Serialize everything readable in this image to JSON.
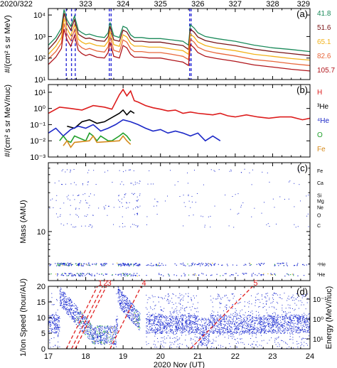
{
  "chart_data": [
    {
      "panel_label": "(a)",
      "type": "line",
      "ylabel": "#/(cm² s sr MeV)",
      "yscale": "log",
      "ylim": [
        10,
        20000
      ],
      "yticks": [
        "10¹",
        "10²",
        "10³",
        "10⁴"
      ],
      "xlim": [
        17,
        24
      ],
      "top_axis": {
        "labels": [
          "2020/322",
          "323",
          "324",
          "325",
          "326",
          "327",
          "328",
          "329"
        ],
        "positions": [
          17,
          18,
          19,
          20,
          21,
          22,
          23,
          24
        ]
      },
      "event_markers": [
        17.48,
        17.62,
        17.72,
        18.63,
        18.68,
        20.78,
        20.82
      ],
      "series": [
        {
          "name": "41.8",
          "color": "#1b8a5a",
          "x": [
            17,
            17.2,
            17.35,
            17.42,
            17.5,
            17.6,
            17.7,
            17.8,
            17.9,
            18.0,
            18.1,
            18.3,
            18.5,
            18.6,
            18.65,
            18.75,
            18.9,
            19.0,
            19.1,
            19.2,
            19.3,
            19.5,
            19.7,
            20.0,
            20.3,
            20.6,
            20.75,
            20.8,
            20.9,
            21.0,
            21.2,
            21.5,
            22.0,
            22.5,
            23.0,
            23.5,
            24.0
          ],
          "values": [
            400,
            900,
            2500,
            18000,
            6000,
            3000,
            9000,
            2000,
            1500,
            1200,
            1300,
            1000,
            900,
            1500,
            4500,
            1100,
            900,
            3000,
            2500,
            1200,
            900,
            900,
            800,
            800,
            700,
            600,
            400,
            3500,
            2500,
            1500,
            1000,
            800,
            600,
            400,
            300,
            250,
            200
          ]
        },
        {
          "name": "51.6",
          "color": "#7a1416",
          "x": [
            17,
            17.2,
            17.35,
            17.42,
            17.5,
            17.6,
            17.7,
            17.8,
            17.9,
            18.0,
            18.1,
            18.3,
            18.5,
            18.6,
            18.65,
            18.75,
            18.9,
            19.0,
            19.1,
            19.2,
            19.3,
            19.5,
            19.7,
            20.0,
            20.3,
            20.6,
            20.75,
            20.8,
            20.9,
            21.0,
            21.2,
            21.5,
            22.0,
            22.5,
            23.0,
            23.5,
            24.0
          ],
          "values": [
            250,
            600,
            1600,
            12000,
            4000,
            2000,
            6000,
            1300,
            1000,
            800,
            850,
            650,
            600,
            1000,
            3000,
            700,
            600,
            2000,
            1600,
            800,
            600,
            600,
            550,
            550,
            450,
            380,
            250,
            2200,
            1600,
            950,
            650,
            500,
            380,
            260,
            200,
            160,
            130
          ]
        },
        {
          "name": "65.1",
          "color": "#f2b21a",
          "x": [
            17,
            17.2,
            17.35,
            17.42,
            17.5,
            17.6,
            17.7,
            17.8,
            17.9,
            18.0,
            18.1,
            18.3,
            18.5,
            18.6,
            18.65,
            18.75,
            18.9,
            19.0,
            19.1,
            19.2,
            19.3,
            19.5,
            19.7,
            20.0,
            20.3,
            20.6,
            20.75,
            20.8,
            20.9,
            21.0,
            21.2,
            21.5,
            22.0,
            22.5,
            23.0,
            23.5,
            24.0
          ],
          "values": [
            150,
            350,
            900,
            7000,
            2300,
            1100,
            3500,
            750,
            550,
            450,
            500,
            380,
            350,
            600,
            1800,
            420,
            350,
            1200,
            950,
            480,
            360,
            360,
            320,
            320,
            260,
            220,
            150,
            1300,
            950,
            560,
            380,
            290,
            220,
            150,
            120,
            95,
            80
          ]
        },
        {
          "name": "82.6",
          "color": "#e8663a",
          "x": [
            17,
            17.2,
            17.35,
            17.42,
            17.5,
            17.6,
            17.7,
            17.8,
            17.9,
            18.0,
            18.1,
            18.3,
            18.5,
            18.6,
            18.65,
            18.75,
            18.9,
            19.0,
            19.1,
            19.2,
            19.3,
            19.5,
            19.7,
            20.0,
            20.3,
            20.6,
            20.75,
            20.8,
            20.9,
            21.0,
            21.2,
            21.5,
            22.0,
            22.5,
            23.0,
            23.5,
            24.0
          ],
          "values": [
            90,
            200,
            500,
            4000,
            1300,
            650,
            2000,
            420,
            300,
            250,
            280,
            210,
            190,
            330,
            1000,
            230,
            190,
            700,
            550,
            270,
            200,
            200,
            180,
            180,
            150,
            120,
            85,
            750,
            550,
            320,
            220,
            170,
            125,
            85,
            70,
            55,
            45
          ]
        },
        {
          "name": "105.7",
          "color": "#b0141a",
          "x": [
            17,
            17.2,
            17.35,
            17.42,
            17.5,
            17.6,
            17.7,
            17.8,
            17.9,
            18.0,
            18.1,
            18.3,
            18.5,
            18.6,
            18.65,
            18.75,
            18.9,
            19.0,
            19.1,
            19.2,
            19.3,
            19.5,
            19.7,
            20.0,
            20.3,
            20.6,
            20.75,
            20.8,
            20.9,
            21.0,
            21.2,
            21.5,
            22.0,
            22.5,
            23.0,
            23.5,
            24.0
          ],
          "values": [
            50,
            110,
            280,
            2200,
            700,
            350,
            1100,
            230,
            160,
            130,
            150,
            110,
            100,
            180,
            550,
            120,
            100,
            380,
            300,
            150,
            110,
            110,
            100,
            100,
            80,
            65,
            45,
            420,
            300,
            180,
            120,
            95,
            70,
            48,
            38,
            30,
            25
          ]
        }
      ]
    },
    {
      "panel_label": "(b)",
      "type": "line",
      "ylabel": "#/(cm² s sr MeV/nuc)",
      "yscale": "log",
      "ylim": [
        0.001,
        30
      ],
      "yticks": [
        "10⁻³",
        "10⁻²",
        "10⁻¹",
        "10⁰",
        "10¹"
      ],
      "xlim": [
        17,
        24
      ],
      "series": [
        {
          "name": "H",
          "color": "#dd1c1c",
          "x": [
            17,
            17.3,
            17.6,
            17.9,
            18.2,
            18.5,
            18.7,
            18.9,
            19.0,
            19.1,
            19.2,
            19.3,
            19.4,
            19.6,
            19.8,
            20.0,
            20.2,
            20.4,
            20.6,
            20.8,
            21.0,
            21.2,
            21.4,
            21.6,
            21.8,
            22.0,
            22.3,
            22.6,
            22.9,
            23.2,
            23.5,
            23.8,
            24.0
          ],
          "values": [
            0.5,
            1.2,
            1.0,
            0.8,
            1.5,
            1.2,
            0.9,
            7,
            15,
            6,
            12,
            3,
            2.5,
            1.5,
            1.1,
            0.9,
            0.7,
            0.8,
            0.5,
            0.6,
            0.5,
            0.45,
            0.4,
            0.5,
            0.35,
            0.3,
            0.4,
            0.3,
            0.25,
            0.3,
            0.3,
            0.2,
            0.25
          ]
        },
        {
          "name": "³He",
          "color": "#000000",
          "x": [
            17.5,
            17.7,
            17.9,
            18.1,
            18.3,
            18.5,
            18.9,
            19.0,
            19.1,
            19.2,
            19.3
          ],
          "values": [
            0.08,
            0.06,
            0.15,
            0.2,
            0.12,
            0.15,
            0.5,
            0.8,
            0.4,
            0.7,
            0.5
          ]
        },
        {
          "name": "⁴He",
          "color": "#1b27c7",
          "x": [
            17,
            17.2,
            17.4,
            17.6,
            17.8,
            18.0,
            18.2,
            18.4,
            18.6,
            18.8,
            19.0,
            19.2,
            19.4,
            19.6,
            19.8,
            20.0,
            20.2,
            20.4,
            20.6,
            20.8,
            21.0,
            21.2,
            21.4,
            21.6
          ],
          "values": [
            0.03,
            0.06,
            0.02,
            0.05,
            0.08,
            0.06,
            0.1,
            0.04,
            0.06,
            0.1,
            0.2,
            0.15,
            0.1,
            0.06,
            0.04,
            0.05,
            0.03,
            0.04,
            0.03,
            0.02,
            0.03,
            0.01,
            0.02,
            0.01
          ]
        },
        {
          "name": "O",
          "color": "#1f9f2a",
          "x": [
            17.3,
            17.4,
            17.5,
            17.6,
            17.7,
            18.0,
            18.1,
            18.2,
            18.3,
            18.4,
            18.6,
            18.7,
            18.9,
            19.0,
            19.1,
            19.2
          ],
          "values": [
            0.01,
            0.02,
            0.01,
            0.008,
            0.02,
            0.01,
            0.03,
            0.02,
            0.01,
            0.02,
            0.01,
            0.01,
            0.02,
            0.03,
            0.02,
            0.01
          ]
        },
        {
          "name": "Fe",
          "color": "#d68a1c",
          "x": [
            17.4,
            17.5,
            17.6,
            17.7,
            18.1,
            18.2,
            18.3,
            18.9,
            19.0,
            19.1,
            19.2
          ],
          "values": [
            0.005,
            0.01,
            0.004,
            0.008,
            0.01,
            0.02,
            0.008,
            0.01,
            0.02,
            0.01,
            0.006
          ]
        }
      ]
    },
    {
      "panel_label": "(c)",
      "type": "scatter",
      "ylabel": "Mass (AMU)",
      "yscale": "log",
      "ylim": [
        2.5,
        70
      ],
      "yticks": [
        "10"
      ],
      "xlim": [
        17,
        24
      ],
      "species_labels": [
        {
          "label": "Fe",
          "mass": 56
        },
        {
          "label": "Ca",
          "mass": 40
        },
        {
          "label": "Si",
          "mass": 28
        },
        {
          "label": "Mg",
          "mass": 24
        },
        {
          "label": "Ne",
          "mass": 20
        },
        {
          "label": "O",
          "mass": 16
        },
        {
          "label": "C",
          "mass": 12
        },
        {
          "label": "⁴He",
          "mass": 4
        },
        {
          "label": "³He",
          "mass": 3
        }
      ]
    },
    {
      "panel_label": "(d)",
      "type": "scatter",
      "ylabel": "1/Ion Speed (hour/AU)",
      "right_ylabel": "Energy (MeV/nuc)",
      "right_yticks": [
        "10⁻¹",
        "10⁰",
        "10¹"
      ],
      "ylim": [
        0,
        20
      ],
      "yticks": [
        "0",
        "5",
        "10",
        "15",
        "20"
      ],
      "xlim": [
        17,
        24
      ],
      "xticks": [
        "17",
        "18",
        "19",
        "20",
        "21",
        "22",
        "23",
        "24"
      ],
      "xlabel": "2020 Nov (UT)",
      "dispersion_lines": [
        {
          "label": "1",
          "x0": 17.48,
          "slope_per_day": 24
        },
        {
          "label": "2",
          "x0": 17.62,
          "slope_per_day": 24
        },
        {
          "label": "3",
          "x0": 17.72,
          "slope_per_day": 24
        },
        {
          "label": "4",
          "x0": 18.65,
          "slope_per_day": 24
        },
        {
          "label": "5",
          "x0": 20.8,
          "slope_per_day": 12
        }
      ],
      "dashed_line_color": "#e02020"
    }
  ]
}
